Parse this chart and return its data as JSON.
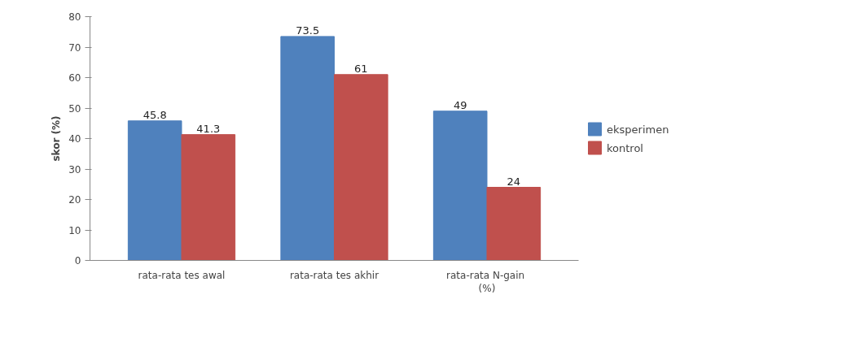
{
  "chart_data": {
    "type": "bar",
    "ylabel": "skor (%)",
    "categories": [
      "rata-rata tes awal",
      "rata-rata tes akhir",
      "rata-rata  N-gain\n(%)"
    ],
    "series": [
      {
        "name": "eksperimen",
        "color": "#4f81bd",
        "values": [
          45.8,
          73.5,
          49
        ]
      },
      {
        "name": "kontrol",
        "color": "#c0504d",
        "values": [
          41.3,
          61,
          24
        ]
      }
    ],
    "ylim": [
      0,
      80
    ],
    "yticks": [
      0,
      10,
      20,
      30,
      40,
      50,
      60,
      70,
      80
    ],
    "data_labels": true,
    "legend": "right",
    "grid": false
  }
}
